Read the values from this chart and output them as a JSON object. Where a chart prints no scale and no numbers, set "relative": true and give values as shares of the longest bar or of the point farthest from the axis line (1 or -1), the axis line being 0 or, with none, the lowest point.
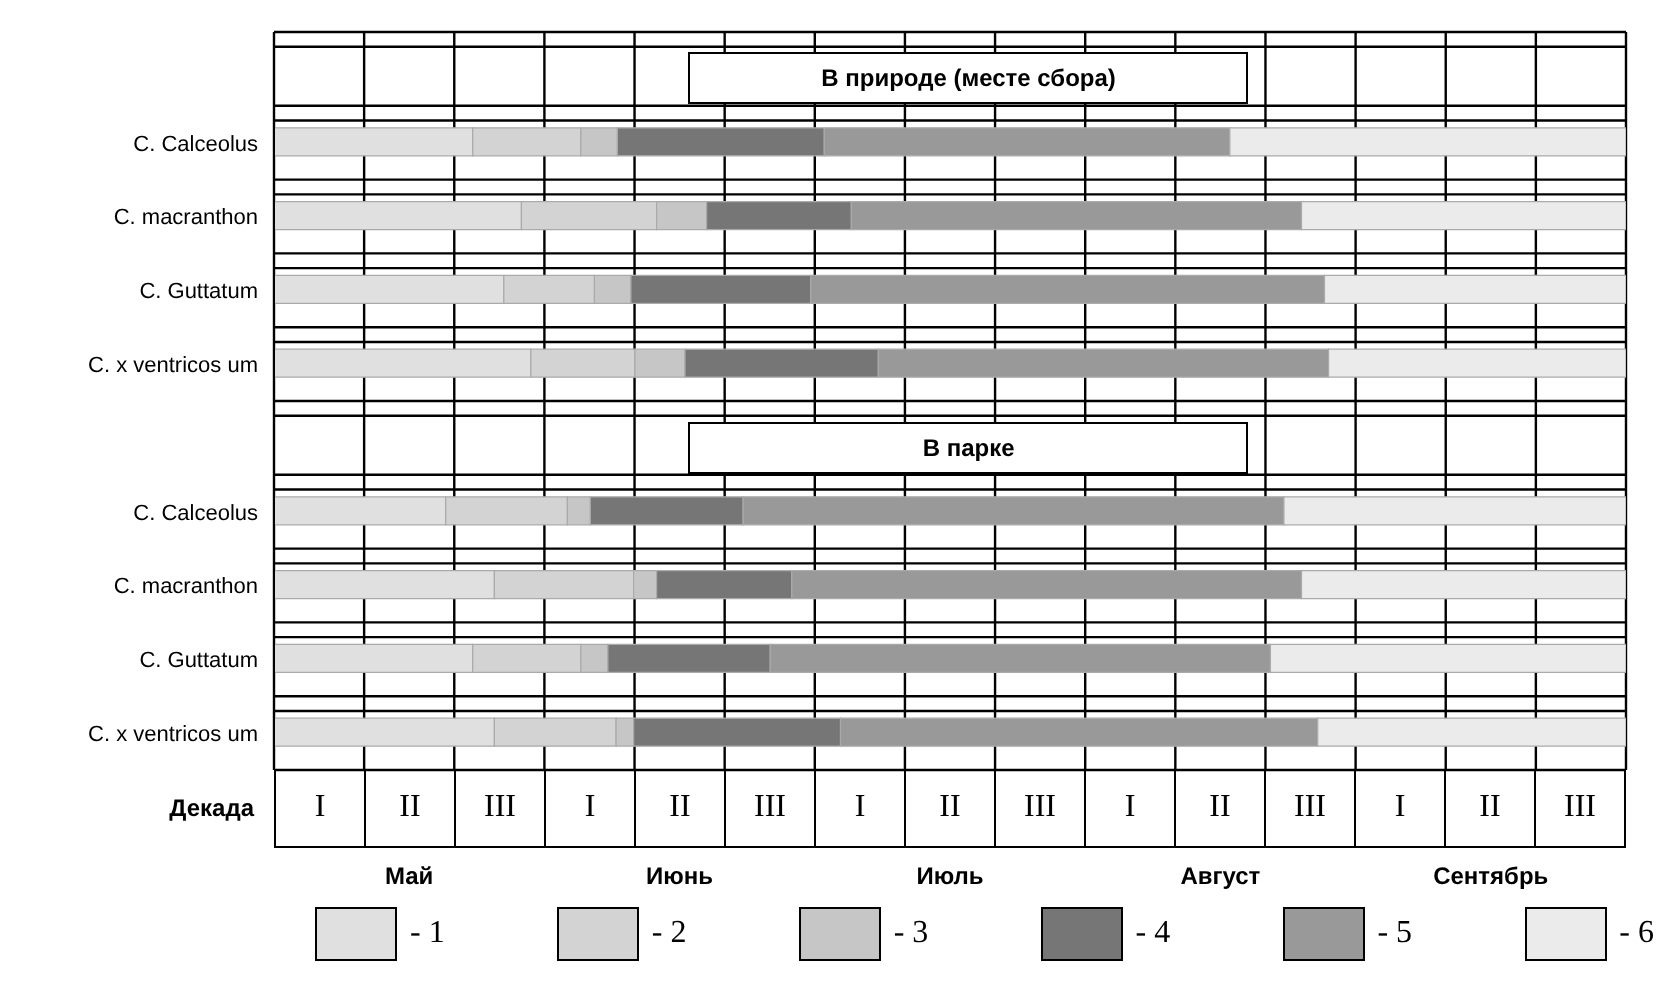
{
  "chart_data": {
    "type": "bar",
    "orientation": "horizontal",
    "stacked": true,
    "relative": true,
    "categories": [
      null,
      "C. Calceolus",
      "C. macranthon",
      "C. Guttatum",
      "C. x ventricos um",
      null,
      "C. Calceolus",
      "C. macranthon",
      "C. Guttatum",
      "C. x ventricos um"
    ],
    "series": [
      {
        "name": "- 1",
        "color": "#e0e0e0",
        "values": [
          null,
          0.147,
          0.183,
          0.17,
          0.19,
          null,
          0.127,
          0.163,
          0.147,
          0.163
        ]
      },
      {
        "name": "- 2",
        "color": "#d3d3d3",
        "values": [
          null,
          0.08,
          0.1,
          0.067,
          0.077,
          null,
          0.09,
          0.103,
          0.08,
          0.09
        ]
      },
      {
        "name": "- 3",
        "color": "#c6c6c6",
        "values": [
          null,
          0.027,
          0.037,
          0.027,
          0.037,
          null,
          0.017,
          0.017,
          0.02,
          0.013
        ]
      },
      {
        "name": "- 4",
        "color": "#767676",
        "values": [
          null,
          0.153,
          0.107,
          0.133,
          0.143,
          null,
          0.113,
          0.1,
          0.12,
          0.153
        ]
      },
      {
        "name": "- 5",
        "color": "#999999",
        "values": [
          null,
          0.3,
          0.333,
          0.38,
          0.333,
          null,
          0.4,
          0.377,
          0.37,
          0.353
        ]
      },
      {
        "name": "- 6",
        "color": "#ebebeb",
        "values": [
          null,
          0.293,
          0.24,
          0.223,
          0.22,
          null,
          0.253,
          0.24,
          0.263,
          0.228
        ]
      }
    ],
    "xlabel": "Декада",
    "annotations": [
      "В  природе (месте сбора)",
      "В парке",
      "I",
      "II",
      "III",
      "I",
      "II",
      "III",
      "I",
      "II",
      "III",
      "I",
      "II",
      "III",
      "I",
      "II",
      "III",
      "Май",
      "Июнь",
      "Июль",
      "Август",
      "Сентябрь"
    ],
    "grid": true,
    "legend": "bottom"
  }
}
